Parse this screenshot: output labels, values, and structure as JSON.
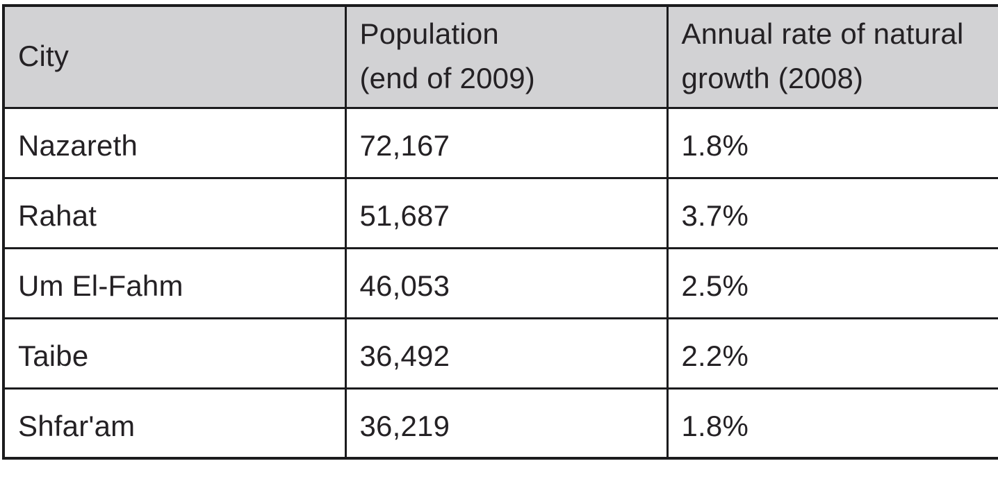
{
  "table": {
    "columns": [
      {
        "label": "City",
        "sublabel": ""
      },
      {
        "label": "Population",
        "sublabel": "(end of 2009)"
      },
      {
        "label": "Annual rate of natural growth (2008)",
        "sublabel": ""
      }
    ],
    "rows": [
      {
        "city": "Nazareth",
        "population": "72,167",
        "growth_rate": "1.8%"
      },
      {
        "city": "Rahat",
        "population": "51,687",
        "growth_rate": "3.7%"
      },
      {
        "city": "Um El-Fahm",
        "population": "46,053",
        "growth_rate": "2.5%"
      },
      {
        "city": "Taibe",
        "population": "36,492",
        "growth_rate": "2.2%"
      },
      {
        "city": "Shfar'am",
        "population": "36,219",
        "growth_rate": "1.8%"
      }
    ]
  },
  "colors": {
    "header_bg": "#d2d2d4",
    "border": "#1b1b1d",
    "text": "#242124",
    "background": "#ffffff"
  }
}
